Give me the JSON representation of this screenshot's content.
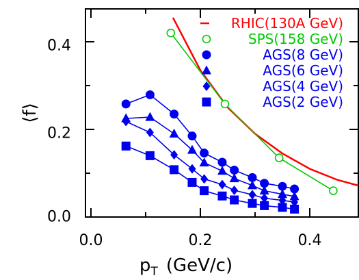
{
  "chart_data": {
    "type": "scatter",
    "xlabel_main": "p",
    "xlabel_sub": "T",
    "xlabel_rest": "(GeV/c)",
    "ylabel": "⟨f⟩",
    "xlim": [
      0.0,
      0.5
    ],
    "ylim": [
      0.0,
      0.5
    ],
    "x_ticks": [
      "0.0",
      "0.2",
      "0.4"
    ],
    "y_ticks": [
      "0.0",
      "0.2",
      "0.4"
    ],
    "grid": false,
    "legend_position": "top-right",
    "series": [
      {
        "name": "RHIC(130A  GeV)",
        "style": "line",
        "marker": "none",
        "color": "#ff0000",
        "x": [
          0.15,
          0.2,
          0.25,
          0.3,
          0.35,
          0.4,
          0.45,
          0.5
        ],
        "y": [
          0.455,
          0.335,
          0.25,
          0.19,
          0.145,
          0.11,
          0.085,
          0.068
        ]
      },
      {
        "name": "SPS(158  GeV)",
        "style": "line+marker",
        "marker": "open-circle",
        "color": "#00cc00",
        "x": [
          0.146,
          0.245,
          0.344,
          0.443
        ],
        "y": [
          0.42,
          0.258,
          0.135,
          0.06
        ]
      },
      {
        "name": "AGS(8  GeV)",
        "style": "line+marker",
        "marker": "circle",
        "color": "#0000ee",
        "x": [
          0.064,
          0.108,
          0.152,
          0.185,
          0.207,
          0.24,
          0.262,
          0.295,
          0.317,
          0.35,
          0.372
        ],
        "y": [
          0.258,
          0.279,
          0.235,
          0.185,
          0.146,
          0.125,
          0.107,
          0.09,
          0.077,
          0.07,
          0.064
        ]
      },
      {
        "name": "AGS(6  GeV)",
        "style": "line+marker",
        "marker": "triangle",
        "color": "#0000ee",
        "x": [
          0.064,
          0.108,
          0.152,
          0.185,
          0.207,
          0.24,
          0.262,
          0.295,
          0.317,
          0.35,
          0.372
        ],
        "y": [
          0.225,
          0.228,
          0.19,
          0.153,
          0.124,
          0.105,
          0.088,
          0.072,
          0.06,
          0.052,
          0.047
        ]
      },
      {
        "name": "AGS(4  GeV)",
        "style": "line+marker",
        "marker": "diamond",
        "color": "#0000ee",
        "x": [
          0.064,
          0.108,
          0.152,
          0.185,
          0.207,
          0.24,
          0.262,
          0.295,
          0.317,
          0.35,
          0.372
        ],
        "y": [
          0.218,
          0.193,
          0.142,
          0.11,
          0.087,
          0.074,
          0.061,
          0.051,
          0.043,
          0.038,
          0.034
        ]
      },
      {
        "name": "AGS(2  GeV)",
        "style": "line+marker",
        "marker": "square",
        "color": "#0000ee",
        "x": [
          0.064,
          0.108,
          0.152,
          0.185,
          0.207,
          0.24,
          0.262,
          0.295,
          0.317,
          0.35,
          0.372
        ],
        "y": [
          0.162,
          0.14,
          0.108,
          0.079,
          0.06,
          0.048,
          0.039,
          0.031,
          0.026,
          0.022,
          0.018
        ]
      }
    ]
  }
}
